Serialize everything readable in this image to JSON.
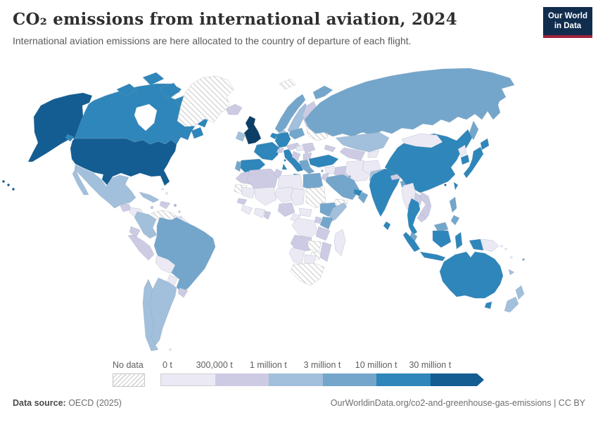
{
  "header": {
    "title": "CO₂ emissions from international aviation, 2024",
    "subtitle": "International aviation emissions are here allocated to the country of departure of each flight."
  },
  "logo": {
    "line1": "Our World",
    "line2": "in Data",
    "bg_color": "#102d4e",
    "accent_color": "#a02439"
  },
  "legend": {
    "no_data_label": "No data"
  },
  "footer": {
    "source_label": "Data source:",
    "source_value": " OECD (2025)",
    "link": "OurWorldinData.org/co2-and-greenhouse-gas-emissions | CC BY"
  },
  "chart_data": {
    "type": "choropleth",
    "title": "CO₂ emissions from international aviation, 2024",
    "unit": "t CO₂",
    "bins": [
      "0 t",
      "300,000 t",
      "1 million t",
      "3 million t",
      "10 million t",
      "30 million t"
    ],
    "bin_meaning": "palette index 0 = 0–300,000 t; 1 = 300,000–1 million t; 2 = 1–3 million t; 3 = 3–10 million t; 4 = 10–30 million t; 5 = 30+ million t; 6 = highest (open-ended arrow)",
    "palette": [
      "#ebe9f4",
      "#cdcbe3",
      "#a2bfdb",
      "#74a6cb",
      "#2e86ba",
      "#135d92",
      "#0d3e66"
    ],
    "no_data_pattern": "diagonal-hatch",
    "legend_position": "bottom",
    "countries": {
      "usa": 5,
      "canada": 4,
      "greenland": "nodata",
      "iceland": 1,
      "mexico": 2,
      "guatemala": 1,
      "honduras_nicaragua": 0,
      "costa_rica_panama": 1,
      "cuba": 2,
      "hispaniola": 1,
      "jamaica": 1,
      "puerto_rico": 2,
      "bahamas": 0,
      "antilles": 1,
      "trinidad": 3,
      "colombia": 2,
      "venezuela": "nodata",
      "guianas": 0,
      "ecuador": 1,
      "peru": 1,
      "brazil": 3,
      "bolivia": 0,
      "paraguay": 0,
      "uruguay": 1,
      "argentina": 2,
      "chile": 2,
      "falkland": 0,
      "uk": 6,
      "ireland": 2,
      "norway": 3,
      "sweden": 2,
      "finland": 1,
      "denmark": 2,
      "baltics": 1,
      "belarus": 0,
      "poland": 3,
      "germany": 4,
      "benelux": 4,
      "france": 4,
      "spain": 4,
      "portugal": 3,
      "italy": 4,
      "switzerland": 1,
      "austria_czech": 1,
      "hungary": 0,
      "romania": 1,
      "balkans": 1,
      "bulgaria": 1,
      "greece": 3,
      "ukraine": "nodata",
      "russia": 3,
      "svalbard": "nodata",
      "kazakhstan": 2,
      "central_asia": 1,
      "kyrgyz_tajik": 0,
      "caucasus": 1,
      "turkey": 4,
      "cyprus": 3,
      "syria": 0,
      "iraq": 1,
      "iran": 0,
      "afghanistan": 0,
      "pakistan": 2,
      "israel_jordan": 1,
      "saudi_arabia": 3,
      "kuwait": 3,
      "uae_qatar": 4,
      "oman": 3,
      "yemen": "nodata",
      "morocco": 1,
      "western_sahara": "nodata",
      "algeria": 1,
      "tunisia": 1,
      "libya": 0,
      "egypt": 3,
      "mauritania": 0,
      "senegal": 1,
      "guinea_coast": 0,
      "mali": 0,
      "niger": 0,
      "chad": 0,
      "sudan": "nodata",
      "eritrea": 1,
      "nigeria": 1,
      "ghana": 1,
      "wafrica_coast": 0,
      "cameroon": 0,
      "car": 0,
      "ethiopia": 3,
      "somalia": 2,
      "kenya": 3,
      "uganda": 1,
      "drc": 0,
      "tanzania": 1,
      "angola": 1,
      "zambia": "nodata",
      "zimbabwe": "nodata",
      "mozambique": 1,
      "namibia": 0,
      "botswana": 0,
      "south_africa": "nodata",
      "madagascar": 0,
      "india": 4,
      "sri_lanka": 4,
      "nepal": 1,
      "bhutan": 1,
      "bangladesh": 3,
      "china": 4,
      "mongolia": 0,
      "taiwan": 4,
      "hong_kong": 5,
      "north_korea": 0,
      "south_korea": 4,
      "japan": 4,
      "myanmar": 0,
      "laos": 1,
      "vietnam": 1,
      "thailand": 4,
      "cambodia": 1,
      "malaysia": 3,
      "singapore": 5,
      "indonesia": 4,
      "borneo_malaysia": 3,
      "philippines": 3,
      "papua_new_guinea": 0,
      "timor": 0,
      "australia": 4,
      "new_zealand": 2,
      "fiji": 3,
      "new_caledonia": 2,
      "solomon": 0,
      "vanuatu": 0
    }
  }
}
